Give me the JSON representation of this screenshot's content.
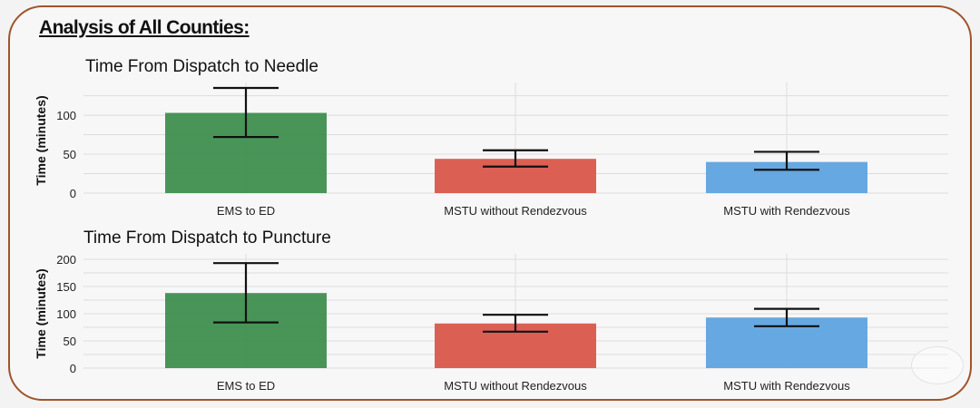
{
  "heading": "Analysis of All Counties:",
  "chart_data": [
    {
      "type": "bar",
      "title": "Time From Dispatch to Needle",
      "ylabel": "Time (minutes)",
      "xlabel": "",
      "categories": [
        "EMS to ED",
        "MSTU without Rendezvous",
        "MSTU with Rendezvous"
      ],
      "values": [
        103,
        44,
        40
      ],
      "error_low": [
        72,
        34,
        30
      ],
      "error_high": [
        135,
        55,
        53
      ],
      "ylim": [
        0,
        135
      ],
      "yticks": [
        0,
        50,
        100
      ],
      "colors": [
        "#3f8f4f",
        "#d9574a",
        "#5ea3df"
      ],
      "grid": true,
      "legend": "none"
    },
    {
      "type": "bar",
      "title": "Time From Dispatch to Puncture",
      "ylabel": "Time (minutes)",
      "xlabel": "",
      "categories": [
        "EMS to ED",
        "MSTU without Rendezvous",
        "MSTU with Rendezvous"
      ],
      "values": [
        138,
        82,
        93
      ],
      "error_low": [
        84,
        67,
        77
      ],
      "error_high": [
        193,
        98,
        109
      ],
      "ylim": [
        0,
        200
      ],
      "yticks": [
        0,
        50,
        100,
        150,
        200
      ],
      "colors": [
        "#3f8f4f",
        "#d9574a",
        "#5ea3df"
      ],
      "grid": true,
      "legend": "none"
    }
  ]
}
